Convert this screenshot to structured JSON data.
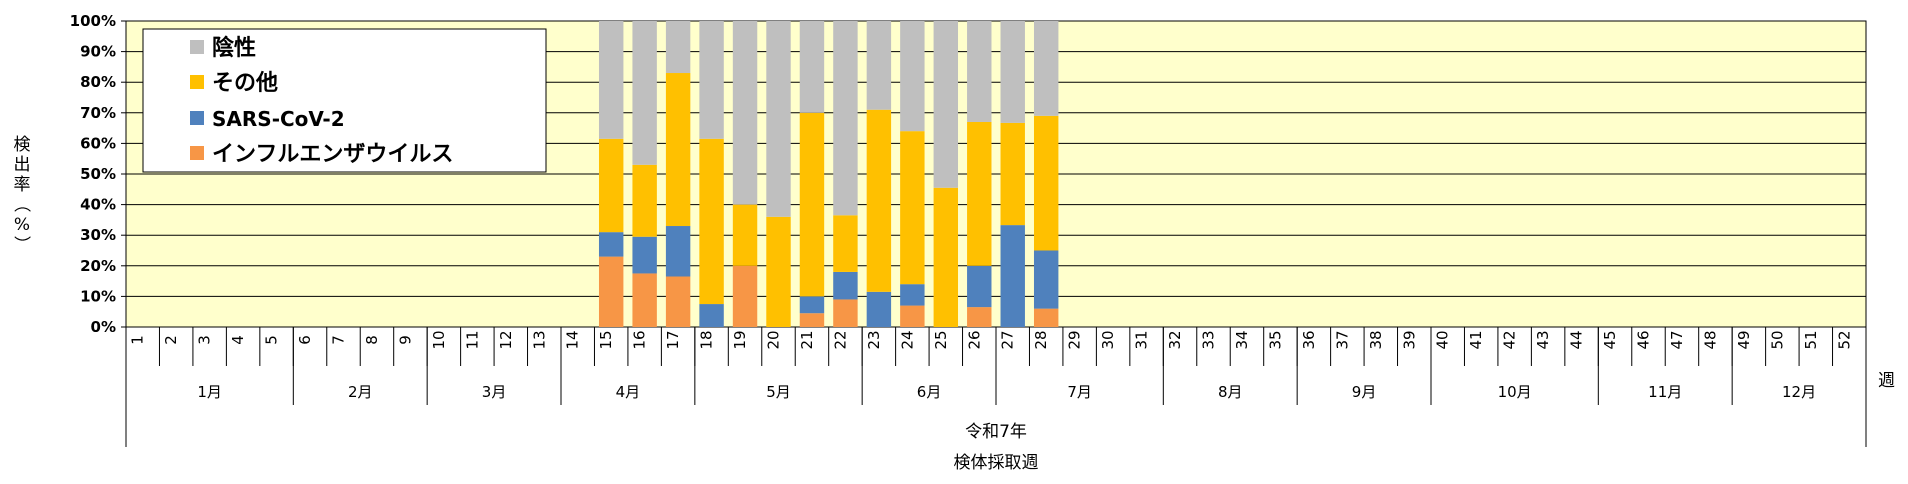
{
  "chart_data": {
    "type": "bar",
    "stacked": true,
    "ylabel": "検出率（%）",
    "xlabel": "検体採取週",
    "x_unit_label": "週",
    "year_label": "令和7年",
    "ylim": [
      0,
      100
    ],
    "y_ticks": [
      "0%",
      "10%",
      "20%",
      "30%",
      "40%",
      "50%",
      "60%",
      "70%",
      "80%",
      "90%",
      "100%"
    ],
    "grid": true,
    "legend_position": "top-left",
    "plot_background": "#ffffcc",
    "categories": [
      "1",
      "2",
      "3",
      "4",
      "5",
      "6",
      "7",
      "8",
      "9",
      "10",
      "11",
      "12",
      "13",
      "14",
      "15",
      "16",
      "17",
      "18",
      "19",
      "20",
      "21",
      "22",
      "23",
      "24",
      "25",
      "26",
      "27",
      "28",
      "29",
      "30",
      "31",
      "32",
      "33",
      "34",
      "35",
      "36",
      "37",
      "38",
      "39",
      "40",
      "41",
      "42",
      "43",
      "44",
      "45",
      "46",
      "47",
      "48",
      "49",
      "50",
      "51",
      "52"
    ],
    "months": [
      {
        "label": "1月",
        "weeks": [
          1,
          5
        ]
      },
      {
        "label": "2月",
        "weeks": [
          6,
          9
        ]
      },
      {
        "label": "3月",
        "weeks": [
          10,
          13
        ]
      },
      {
        "label": "4月",
        "weeks": [
          14,
          17
        ]
      },
      {
        "label": "5月",
        "weeks": [
          18,
          22
        ]
      },
      {
        "label": "6月",
        "weeks": [
          23,
          26
        ]
      },
      {
        "label": "7月",
        "weeks": [
          27,
          31
        ]
      },
      {
        "label": "8月",
        "weeks": [
          32,
          35
        ]
      },
      {
        "label": "9月",
        "weeks": [
          36,
          39
        ]
      },
      {
        "label": "10月",
        "weeks": [
          40,
          44
        ]
      },
      {
        "label": "11月",
        "weeks": [
          45,
          48
        ]
      },
      {
        "label": "12月",
        "weeks": [
          49,
          52
        ]
      }
    ],
    "series": [
      {
        "name": "インフルエンザウイルス",
        "color": "#f79646",
        "values": [
          null,
          null,
          null,
          null,
          null,
          null,
          null,
          null,
          null,
          null,
          null,
          null,
          null,
          null,
          23,
          17.5,
          16.5,
          0,
          20,
          0,
          4.5,
          9,
          0,
          7,
          0,
          6.5,
          0,
          6,
          null,
          null,
          null,
          null,
          null,
          null,
          null,
          null,
          null,
          null,
          null,
          null,
          null,
          null,
          null,
          null,
          null,
          null,
          null,
          null,
          null,
          null,
          null,
          null
        ]
      },
      {
        "name": "SARS-CoV-2",
        "color": "#4f81bd",
        "values": [
          null,
          null,
          null,
          null,
          null,
          null,
          null,
          null,
          null,
          null,
          null,
          null,
          null,
          null,
          8,
          12,
          16.5,
          7.5,
          0,
          0,
          5.5,
          9,
          11.5,
          7,
          0,
          13.5,
          33.3,
          19,
          null,
          null,
          null,
          null,
          null,
          null,
          null,
          null,
          null,
          null,
          null,
          null,
          null,
          null,
          null,
          null,
          null,
          null,
          null,
          null,
          null,
          null,
          null,
          null
        ]
      },
      {
        "name": "その他",
        "color": "#ffc000",
        "values": [
          null,
          null,
          null,
          null,
          null,
          null,
          null,
          null,
          null,
          null,
          null,
          null,
          null,
          null,
          30.5,
          23.5,
          50,
          54,
          20,
          36,
          60,
          18.5,
          59.5,
          50,
          45.5,
          47,
          33.4,
          44,
          null,
          null,
          null,
          null,
          null,
          null,
          null,
          null,
          null,
          null,
          null,
          null,
          null,
          null,
          null,
          null,
          null,
          null,
          null,
          null,
          null,
          null,
          null,
          null
        ]
      },
      {
        "name": "陰性",
        "color": "#bfbfbf",
        "values": [
          null,
          null,
          null,
          null,
          null,
          null,
          null,
          null,
          null,
          null,
          null,
          null,
          null,
          null,
          38.5,
          47,
          17,
          38.5,
          60,
          64,
          30,
          63.5,
          29,
          36,
          54.5,
          33,
          33.3,
          31,
          null,
          null,
          null,
          null,
          null,
          null,
          null,
          null,
          null,
          null,
          null,
          null,
          null,
          null,
          null,
          null,
          null,
          null,
          null,
          null,
          null,
          null,
          null,
          null
        ]
      }
    ],
    "legend_order": [
      "陰性",
      "その他",
      "SARS-CoV-2",
      "インフルエンザウイルス"
    ]
  }
}
